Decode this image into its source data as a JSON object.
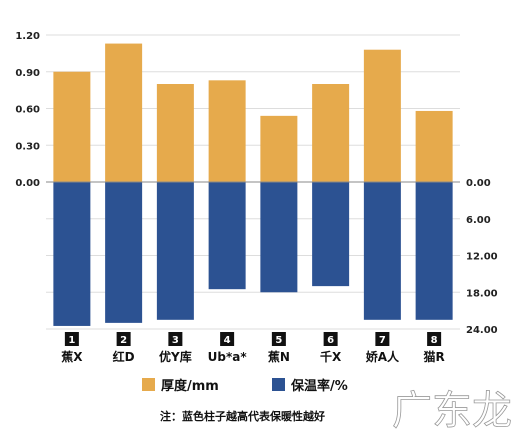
{
  "chart_data": {
    "type": "bar",
    "categories": [
      "蕉X",
      "红D",
      "优Y库",
      "Ub*a*",
      "蕉N",
      "千X",
      "娇A人",
      "猫R"
    ],
    "category_numbers": [
      "1",
      "2",
      "3",
      "4",
      "5",
      "6",
      "7",
      "8"
    ],
    "series": [
      {
        "name": "厚度/mm",
        "color": "#E6AA4C",
        "axis": "left",
        "values": [
          0.9,
          1.13,
          0.8,
          0.83,
          0.54,
          0.8,
          1.08,
          0.58
        ]
      },
      {
        "name": "保温率/%",
        "color": "#2C5292",
        "axis": "right",
        "values": [
          23.5,
          23.0,
          22.5,
          17.5,
          18.0,
          17.0,
          22.5,
          22.5
        ]
      }
    ],
    "left_axis": {
      "ylim": [
        0,
        1.2
      ],
      "ticks": [
        "0.00",
        "0.30",
        "0.60",
        "0.90",
        "1.20"
      ]
    },
    "right_axis": {
      "ylim": [
        0,
        24
      ],
      "ticks": [
        "0.00",
        "6.00",
        "12.00",
        "18.00",
        "24.00"
      ]
    },
    "grid": true,
    "legend_position": "bottom",
    "note": "注：蓝色柱子越高代表保暖性越好"
  },
  "watermark": "广东龙网",
  "colors": {
    "background": "#ffffff",
    "grid": "#dddddd"
  }
}
